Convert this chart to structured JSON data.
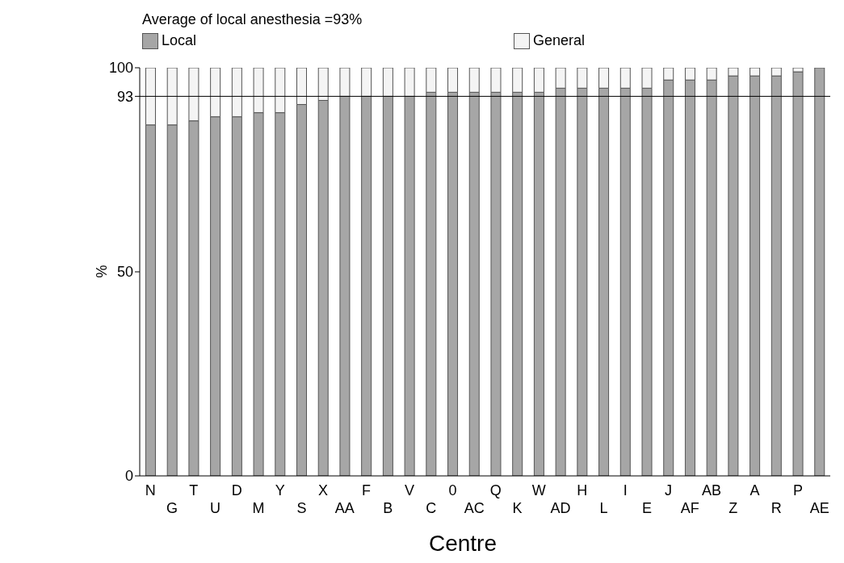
{
  "chart_data": {
    "type": "bar",
    "title": "Average of local anesthesia =93%",
    "xlabel": "Centre",
    "ylabel": "%",
    "categories": [
      "N",
      "G",
      "T",
      "U",
      "D",
      "M",
      "Y",
      "S",
      "X",
      "AA",
      "F",
      "B",
      "V",
      "C",
      "0",
      "AC",
      "Q",
      "K",
      "W",
      "AD",
      "H",
      "L",
      "I",
      "E",
      "J",
      "AF",
      "AB",
      "Z",
      "A",
      "R",
      "P",
      "AE"
    ],
    "stacked": true,
    "series": [
      {
        "name": "Local",
        "color": "#a6a6a6",
        "values": [
          86,
          86,
          87,
          88,
          88,
          89,
          89,
          91,
          92,
          93,
          93,
          93,
          93,
          94,
          94,
          94,
          94,
          94,
          94,
          95,
          95,
          95,
          95,
          95,
          97,
          97,
          97,
          98,
          98,
          98,
          99,
          100
        ]
      },
      {
        "name": "General",
        "color": "#f4f4f4",
        "values": [
          14,
          14,
          13,
          12,
          12,
          11,
          11,
          9,
          8,
          7,
          7,
          7,
          7,
          6,
          6,
          6,
          6,
          6,
          6,
          5,
          5,
          5,
          5,
          5,
          3,
          3,
          3,
          2,
          2,
          2,
          1,
          0
        ]
      }
    ],
    "ylim": [
      0,
      100
    ],
    "yticks": [
      0,
      50,
      93,
      100
    ],
    "ref_lines": [
      {
        "axis": "y",
        "value": 93,
        "color": "#000000"
      }
    ],
    "legend": "top",
    "grid": false
  }
}
